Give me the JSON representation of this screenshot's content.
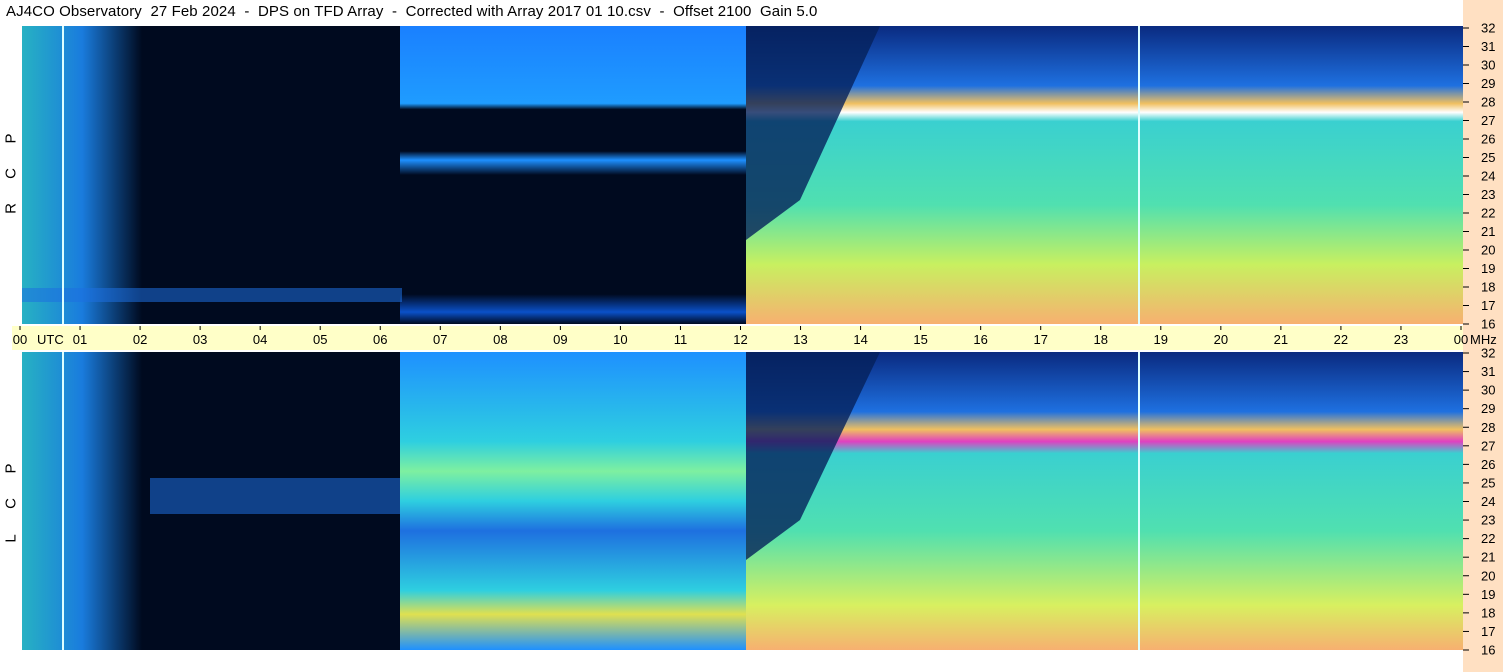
{
  "title": "AJ4CO Observatory  27 Feb 2024  -  DPS on TFD Array  -  Corrected with Array 2017 01 10.csv  -  Offset 2100  Gain 5.0",
  "top_panel_label": [
    "R",
    "C",
    "P"
  ],
  "bottom_panel_label": [
    "L",
    "C",
    "P"
  ],
  "chart_data": {
    "type": "heatmap",
    "title": "AJ4CO Observatory  27 Feb 2024  -  DPS on TFD Array  -  Corrected with Array 2017 01 10.csv  -  Offset 2100  Gain 5.0",
    "x_axis": {
      "unit_label": "UTC",
      "ticks": [
        "00",
        "01",
        "02",
        "03",
        "04",
        "05",
        "06",
        "07",
        "08",
        "09",
        "10",
        "11",
        "12",
        "13",
        "14",
        "15",
        "16",
        "17",
        "18",
        "19",
        "20",
        "21",
        "22",
        "23",
        "00"
      ],
      "range": [
        0,
        24
      ]
    },
    "y_axis": {
      "unit_label": "MHz",
      "ticks": [
        "32",
        "31",
        "30",
        "29",
        "28",
        "27",
        "26",
        "25",
        "24",
        "23",
        "22",
        "21",
        "20",
        "19",
        "18",
        "17",
        "16"
      ],
      "range": [
        16,
        32
      ]
    },
    "panels": [
      {
        "name": "RCP",
        "label": "R C P"
      },
      {
        "name": "LCP",
        "label": "L C P"
      }
    ],
    "colormap": [
      "#000a1f",
      "#0033aa",
      "#1e90ff",
      "#2ecfe0",
      "#7ef0a0",
      "#d8f060",
      "#f7b070",
      "#e040c0",
      "#ffffff"
    ],
    "features": [
      {
        "panel": "RCP",
        "start_utc": 6.35,
        "end_utc": 12.1,
        "description_level": "bright band"
      },
      {
        "panel": "LCP",
        "start_utc": 6.35,
        "end_utc": 12.1,
        "description_level": "bright band"
      }
    ]
  }
}
